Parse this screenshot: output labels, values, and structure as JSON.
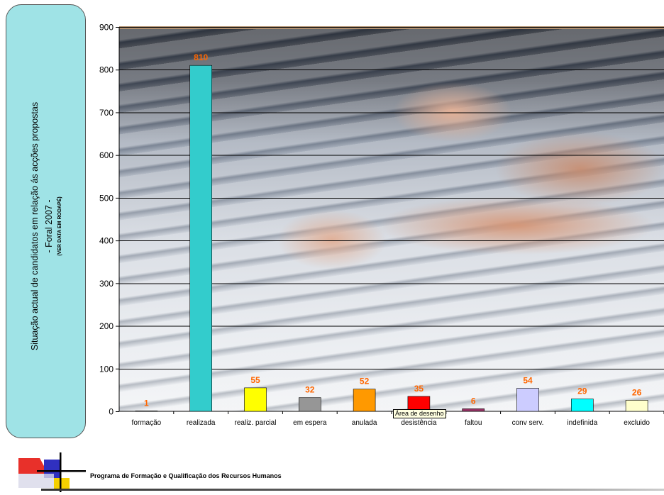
{
  "title": {
    "line1": "Situação actual de candidatos em relação ás acções propostas",
    "line2": "- Foral 2007 -",
    "line3": "(VER DATA EM RODAPÉ)"
  },
  "footer": {
    "text": "Programa de Formação e Qualificação dos Recursos Humanos"
  },
  "tooltip": {
    "text": "Área de desenho"
  },
  "chart_data": {
    "type": "bar",
    "categories": [
      "formação",
      "realizada",
      "realiz. parcial",
      "em espera",
      "anulada",
      "desistência",
      "faltou",
      "conv serv.",
      "indefinida",
      "excluido"
    ],
    "values": [
      1,
      810,
      55,
      32,
      52,
      35,
      6,
      54,
      29,
      26
    ],
    "labels": [
      "1",
      "810",
      "55",
      "32",
      "52",
      "35",
      "6",
      "54",
      "29",
      "26"
    ],
    "colors": [
      "#1a1a3a",
      "#33cccc",
      "#ffff00",
      "#969696",
      "#ff9900",
      "#ff0000",
      "#993366",
      "#ccccff",
      "#00ffff",
      "#ffffcc"
    ],
    "yticks": [
      "0",
      "100",
      "200",
      "300",
      "400",
      "500",
      "600",
      "700",
      "800",
      "900"
    ],
    "ylim": [
      0,
      900
    ],
    "label_color": "#ff6600",
    "grid": true
  }
}
